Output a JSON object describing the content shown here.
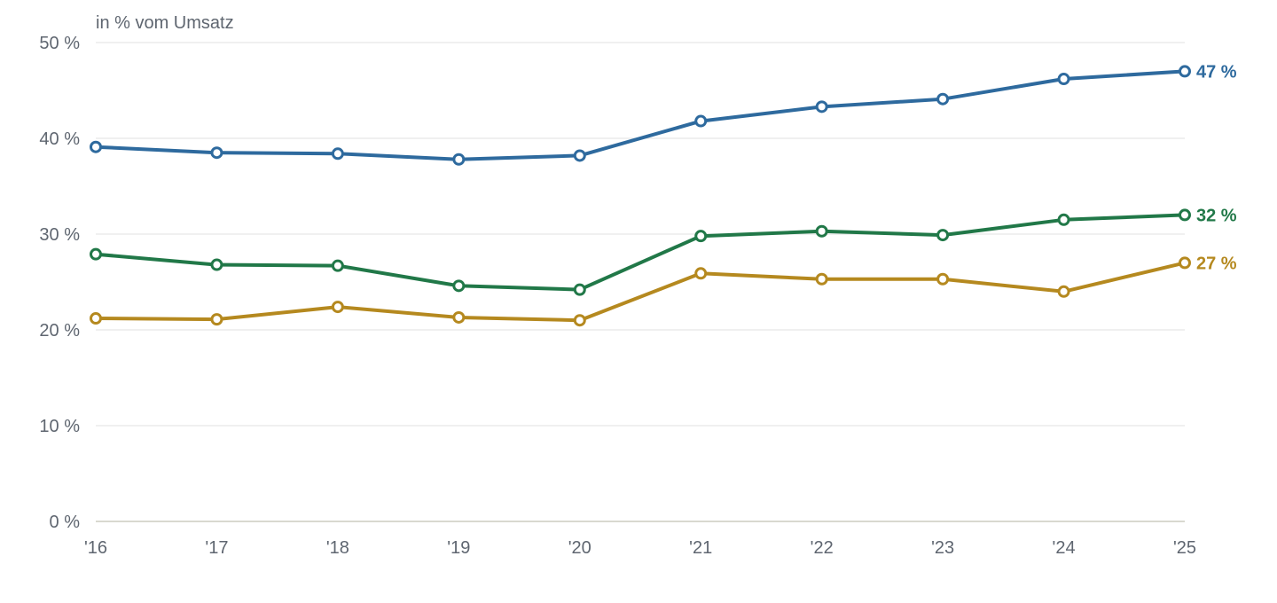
{
  "chart_data": {
    "type": "line",
    "unit_label": "in % vom Umsatz",
    "categories": [
      "'16",
      "'17",
      "'18",
      "'19",
      "'20",
      "'21",
      "'22",
      "'23",
      "'24",
      "'25"
    ],
    "y_ticks": [
      0,
      10,
      20,
      30,
      40,
      50
    ],
    "y_tick_labels": [
      "0 %",
      "10 %",
      "20 %",
      "30 %",
      "40 %",
      "50 %"
    ],
    "ylim": [
      0,
      50
    ],
    "grid": true,
    "legend": "none",
    "series": [
      {
        "color": "#2e6a9e",
        "values": [
          39.1,
          38.5,
          38.4,
          37.8,
          38.2,
          41.8,
          43.3,
          44.1,
          46.2,
          47.0
        ],
        "end_label": "47 %"
      },
      {
        "color": "#217848",
        "values": [
          27.9,
          26.8,
          26.7,
          24.6,
          24.2,
          29.8,
          30.3,
          29.9,
          31.5,
          32.0
        ],
        "end_label": "32 %"
      },
      {
        "color": "#b5891f",
        "values": [
          21.2,
          21.1,
          22.4,
          21.3,
          21.0,
          25.9,
          25.3,
          25.3,
          24.0,
          27.0
        ],
        "end_label": "27 %"
      }
    ]
  }
}
